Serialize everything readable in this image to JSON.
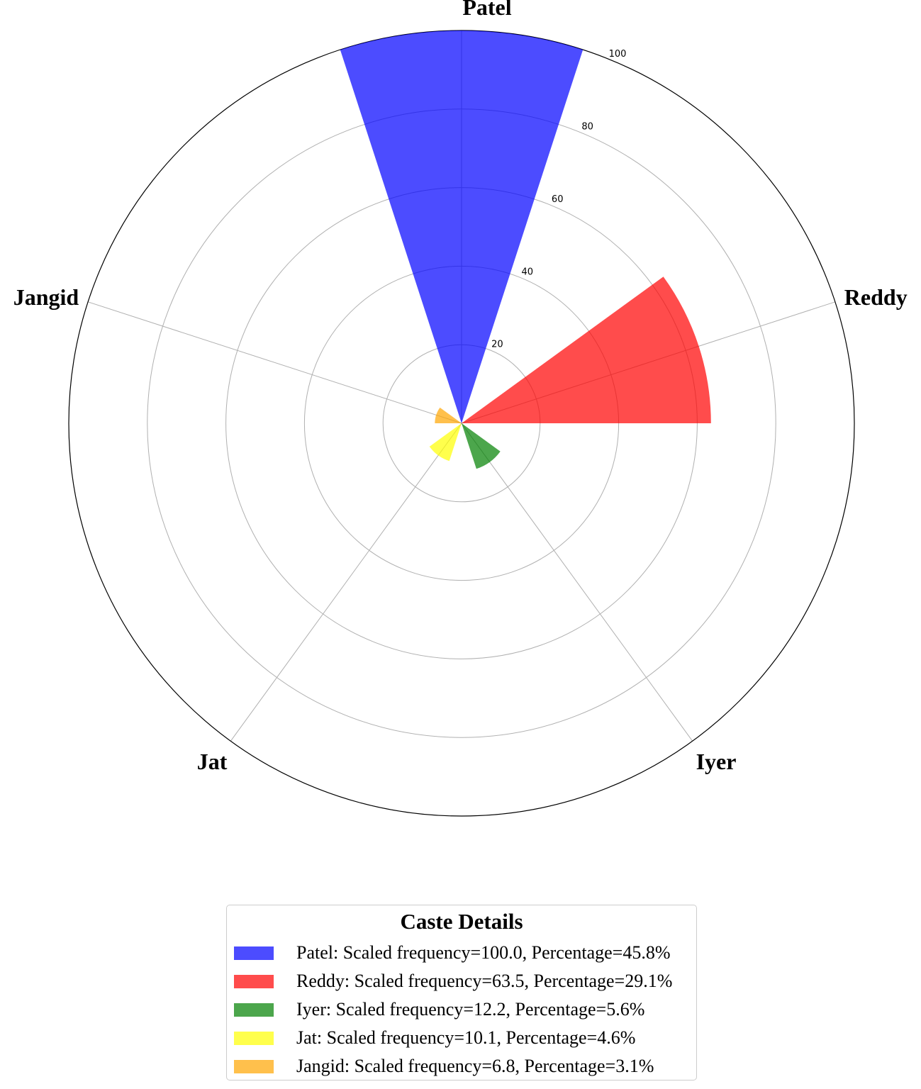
{
  "chart_data": {
    "type": "polar-bar",
    "categories": [
      "Patel",
      "Reddy",
      "Iyer",
      "Jat",
      "Jangid"
    ],
    "values": [
      100.0,
      63.5,
      12.2,
      10.1,
      6.8
    ],
    "colors": [
      "#0000ff",
      "#ff0000",
      "#008000",
      "#ffff00",
      "#ffa500"
    ],
    "opacity": 0.7,
    "rlim": [
      0,
      100
    ],
    "radial_ticks": [
      "20",
      "40",
      "60",
      "80",
      "100"
    ],
    "radial_tick_values": [
      20,
      40,
      60,
      80,
      100
    ],
    "grid": true,
    "legend": {
      "title": "Caste Details",
      "position": "bottom-center",
      "items": [
        "Patel: Scaled frequency=100.0, Percentage=45.8%",
        "Reddy: Scaled frequency=63.5, Percentage=29.1%",
        "Iyer: Scaled frequency=12.2, Percentage=5.6%",
        "Jat: Scaled frequency=10.1, Percentage=4.6%",
        "Jangid: Scaled frequency=6.8, Percentage=3.1%"
      ]
    }
  }
}
